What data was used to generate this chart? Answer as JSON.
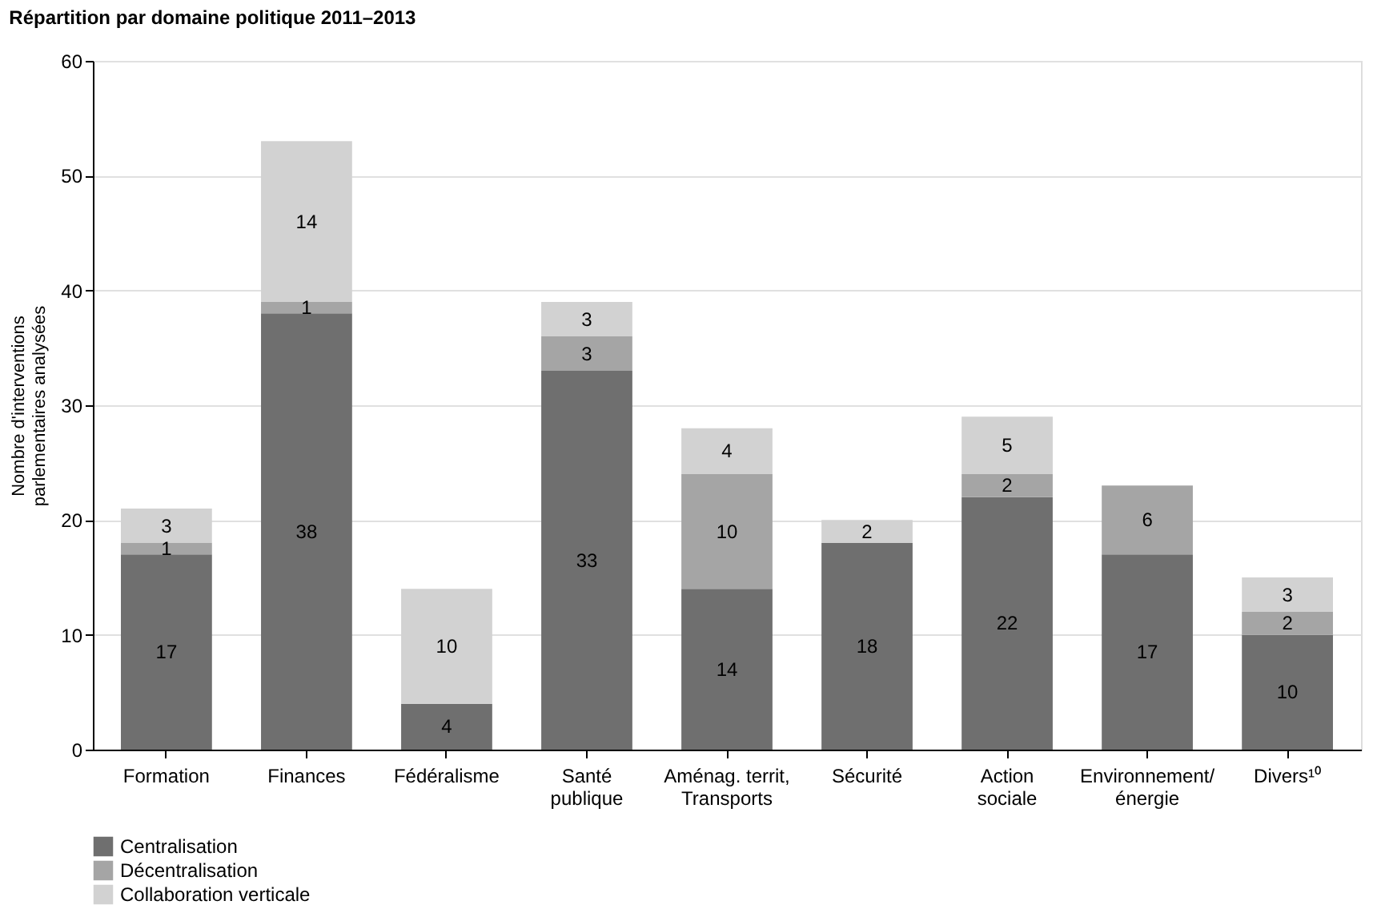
{
  "chart_data": {
    "type": "bar",
    "title": "Répartition par domaine politique 2011–2013",
    "ylabel": "Nombre d'interventions parlementaires analysées",
    "categories": [
      "Formation",
      "Finances",
      "Fédéralisme",
      "Santé publique",
      "Aménag. territ, Transports",
      "Sécurité",
      "Action sociale",
      "Environnement/ énergie",
      "Divers¹⁰"
    ],
    "stacked": true,
    "series": [
      {
        "name": "Centralisation",
        "color": "#6f6f6f",
        "values": [
          17,
          38,
          4,
          33,
          14,
          18,
          22,
          17,
          10
        ]
      },
      {
        "name": "Décentralisation",
        "color": "#a5a5a5",
        "values": [
          1,
          1,
          null,
          3,
          10,
          null,
          2,
          6,
          2
        ]
      },
      {
        "name": "Collaboration verticale",
        "color": "#d2d2d2",
        "values": [
          3,
          14,
          10,
          3,
          4,
          2,
          5,
          null,
          3
        ]
      }
    ],
    "ylim": [
      0,
      60
    ],
    "yticks": [
      0,
      10,
      20,
      30,
      40,
      50,
      60
    ],
    "grid": "y",
    "legend": "bottom",
    "data_labels": true
  }
}
